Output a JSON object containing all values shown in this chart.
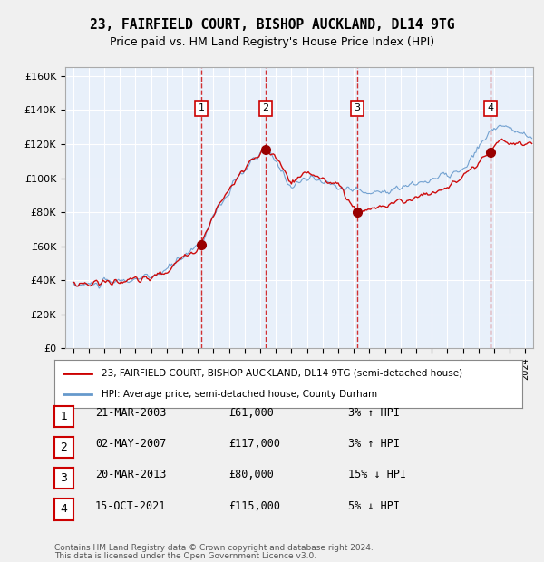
{
  "title": "23, FAIRFIELD COURT, BISHOP AUCKLAND, DL14 9TG",
  "subtitle": "Price paid vs. HM Land Registry's House Price Index (HPI)",
  "legend_property": "23, FAIRFIELD COURT, BISHOP AUCKLAND, DL14 9TG (semi-detached house)",
  "legend_hpi": "HPI: Average price, semi-detached house, County Durham",
  "footer1": "Contains HM Land Registry data © Crown copyright and database right 2024.",
  "footer2": "This data is licensed under the Open Government Licence v3.0.",
  "transactions": [
    {
      "num": 1,
      "date": "21-MAR-2003",
      "price": 61000,
      "pct": "3%",
      "dir": "↑"
    },
    {
      "num": 2,
      "date": "02-MAY-2007",
      "price": 117000,
      "pct": "3%",
      "dir": "↑"
    },
    {
      "num": 3,
      "date": "20-MAR-2013",
      "price": 80000,
      "pct": "15%",
      "dir": "↓"
    },
    {
      "num": 4,
      "date": "15-OCT-2021",
      "price": 115000,
      "pct": "5%",
      "dir": "↓"
    }
  ],
  "transaction_years": [
    2003.22,
    2007.33,
    2013.22,
    2021.79
  ],
  "transaction_prices": [
    61000,
    117000,
    80000,
    115000
  ],
  "ylim": [
    0,
    165000
  ],
  "yticks": [
    0,
    20000,
    40000,
    60000,
    80000,
    100000,
    120000,
    140000,
    160000
  ],
  "bg_color": "#dce9f5",
  "plot_bg": "#e8f0fa",
  "grid_color": "#ffffff",
  "line_color_property": "#cc0000",
  "line_color_hpi": "#6699cc",
  "dashed_line_color": "#cc0000",
  "marker_color": "#990000",
  "box_color": "#cc0000"
}
